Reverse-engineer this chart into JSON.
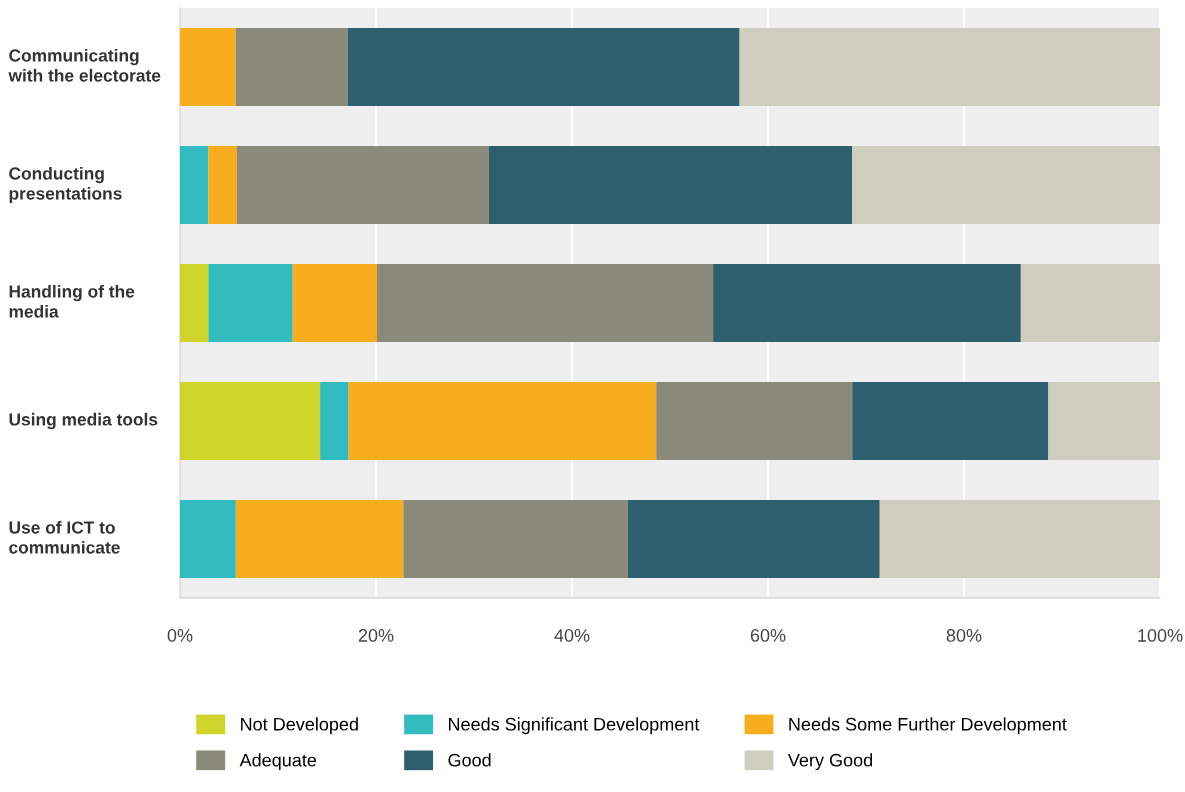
{
  "chart_data": {
    "type": "bar",
    "orientation": "horizontal",
    "stacked": true,
    "categories": [
      "Communicating with the electorate",
      "Conducting presentations",
      "Handling of the media",
      "Using media tools",
      "Use of ICT to communicate"
    ],
    "series": [
      {
        "name": "Not Developed",
        "color": "#cfd52b",
        "values": [
          0,
          0,
          2.9,
          14.3,
          0
        ]
      },
      {
        "name": "Needs Significant Development",
        "color": "#33bcbf",
        "values": [
          0,
          2.9,
          8.6,
          2.9,
          5.7
        ]
      },
      {
        "name": "Needs Some Further Development",
        "color": "#f6ae1f",
        "values": [
          5.7,
          2.9,
          8.6,
          31.4,
          17.1
        ]
      },
      {
        "name": "Adequate",
        "color": "#898a7a",
        "values": [
          11.4,
          25.7,
          34.3,
          20,
          22.9
        ]
      },
      {
        "name": "Good",
        "color": "#2e5f6e",
        "values": [
          40,
          37.1,
          31.4,
          20,
          25.7
        ]
      },
      {
        "name": "Very Good",
        "color": "#cfcdbe",
        "values": [
          42.9,
          31.4,
          14.3,
          11.4,
          28.6
        ]
      }
    ],
    "xlim": [
      0,
      100
    ],
    "xticks": [
      {
        "value": 0,
        "label": "0%"
      },
      {
        "value": 20,
        "label": "20%"
      },
      {
        "value": 40,
        "label": "40%"
      },
      {
        "value": 60,
        "label": "60%"
      },
      {
        "value": 80,
        "label": "80%"
      },
      {
        "value": 100,
        "label": "100%"
      }
    ],
    "grid": "x",
    "legend": "bottom"
  }
}
